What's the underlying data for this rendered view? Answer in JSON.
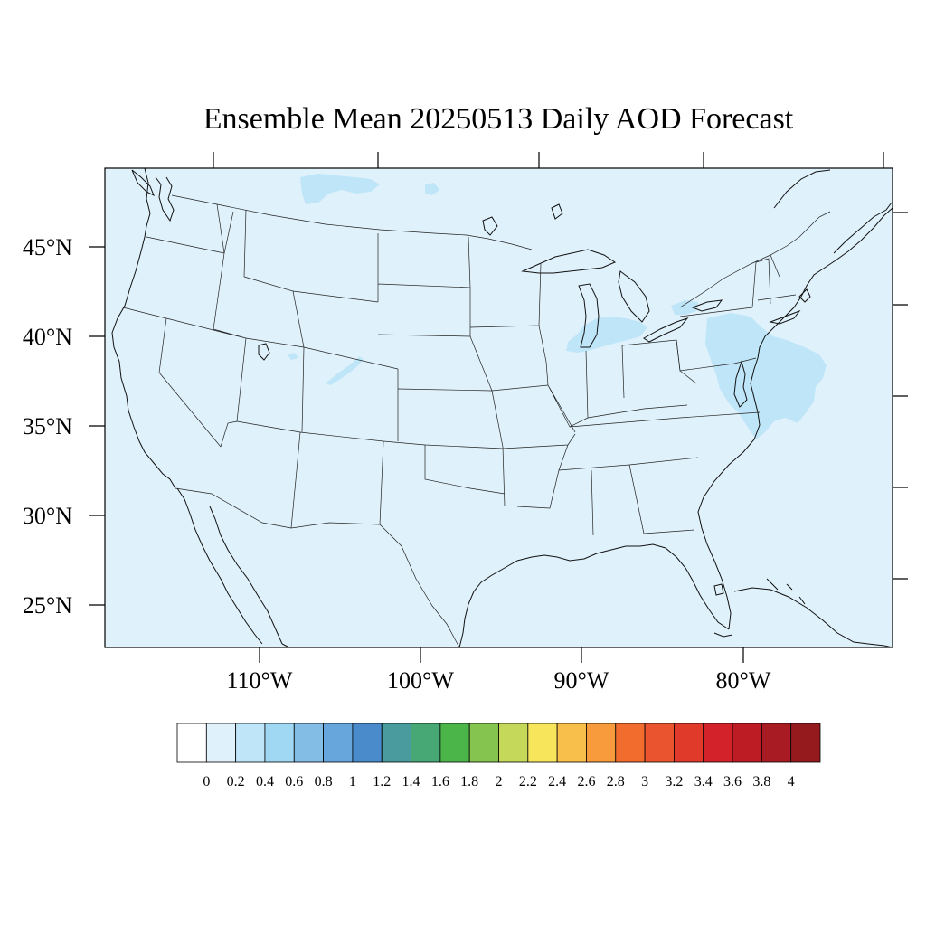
{
  "map": {
    "title": "Ensemble Mean 20250513 Daily AOD Forecast",
    "background_value_color": "#dff1fb",
    "plume_color": "#bfe5f8",
    "lat_labels": [
      "45°N",
      "40°N",
      "35°N",
      "30°N",
      "25°N"
    ],
    "lon_labels": [
      "110°W",
      "100°W",
      "90°W",
      "80°W"
    ]
  },
  "colorbar": {
    "levels": [
      "0",
      "0.2",
      "0.4",
      "0.6",
      "0.8",
      "1",
      "1.2",
      "1.4",
      "1.6",
      "1.8",
      "2",
      "2.2",
      "2.4",
      "2.6",
      "2.8",
      "3",
      "3.2",
      "3.4",
      "3.6",
      "3.8",
      "4"
    ],
    "colors": [
      "#ffffff",
      "#dff1fb",
      "#bfe5f8",
      "#a0d8f4",
      "#83bde6",
      "#66a6dc",
      "#4a8ccb",
      "#4a9b9e",
      "#47a775",
      "#4bb54a",
      "#85c54f",
      "#c5d85a",
      "#f7e55c",
      "#f8bf4a",
      "#f79b3d",
      "#f26c2e",
      "#ea5530",
      "#e03a2b",
      "#d32229",
      "#be1c25",
      "#a91b22",
      "#951a1e"
    ]
  }
}
